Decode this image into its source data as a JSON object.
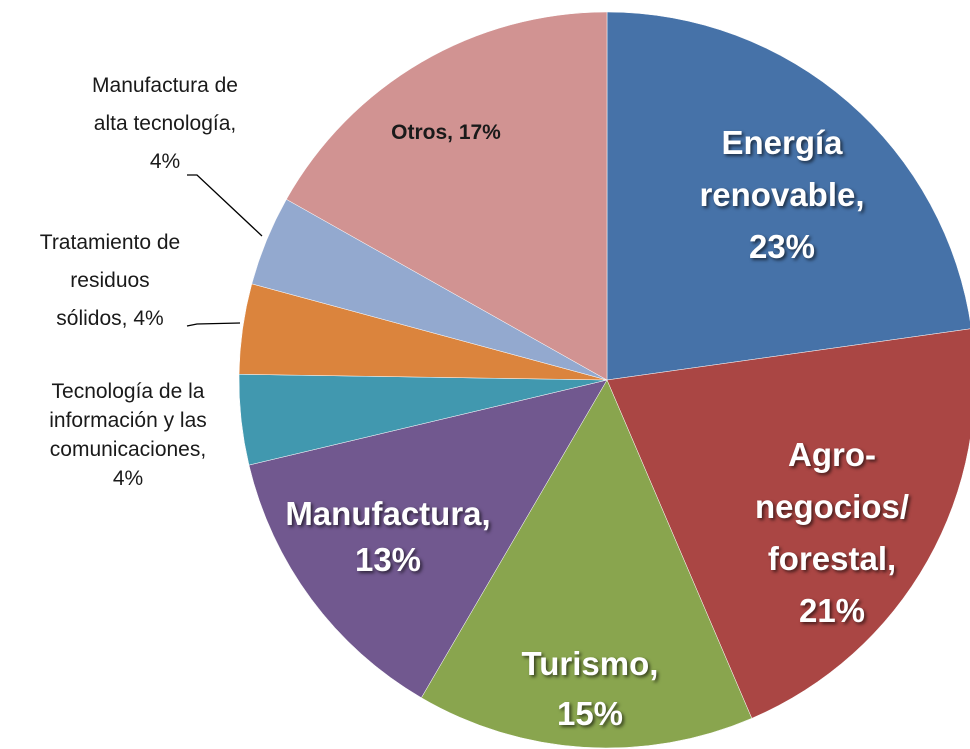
{
  "chart_data": {
    "type": "pie",
    "values": [
      23,
      21,
      15,
      13,
      4,
      4,
      4,
      17
    ],
    "value_labels": [
      "Energía\nrenovable,\n23%",
      "Agro-\nnegocios/\nforestal,\n21%",
      "Turismo,\n15%",
      "Manufactura,\n13%",
      "Tecnología de la\ninformación y las\ncomunicaciones,\n4%",
      "Tratamiento de\nresiduos\nsólidos, 4%",
      "Manufactura de\nalta tecnología,\n4%",
      "Otros, 17%"
    ],
    "colors": [
      "#4672a8",
      "#aa4644",
      "#89a54e",
      "#71588f",
      "#4198af",
      "#db843d",
      "#93a9cf",
      "#d19392"
    ]
  }
}
